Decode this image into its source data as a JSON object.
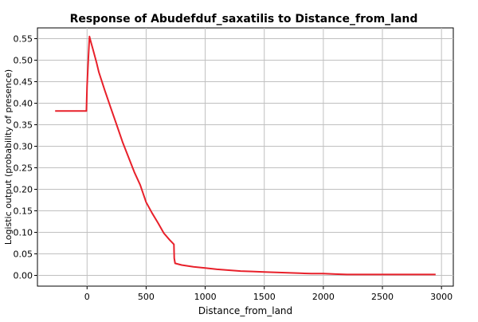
{
  "chart_data": {
    "type": "line",
    "title": "Response of Abudefduf_saxatilis to Distance_from_land",
    "xlabel": "Distance_from_land",
    "ylabel": "Logistic output (probability of presence)",
    "xlim": [
      -420,
      3100
    ],
    "ylim": [
      -0.025,
      0.575
    ],
    "x_ticks": [
      0,
      500,
      1000,
      1500,
      2000,
      2500,
      3000
    ],
    "y_ticks": [
      0.0,
      0.05,
      0.1,
      0.15,
      0.2,
      0.25,
      0.3,
      0.35,
      0.4,
      0.45,
      0.5,
      0.55
    ],
    "grid": true,
    "legend": "none",
    "series": [
      {
        "color": "#e8202a",
        "points": [
          [
            -270,
            0.382
          ],
          [
            -5,
            0.382
          ],
          [
            -5,
            0.385
          ],
          [
            0,
            0.44
          ],
          [
            10,
            0.5
          ],
          [
            20,
            0.555
          ],
          [
            30,
            0.545
          ],
          [
            50,
            0.525
          ],
          [
            80,
            0.495
          ],
          [
            100,
            0.472
          ],
          [
            150,
            0.43
          ],
          [
            200,
            0.39
          ],
          [
            250,
            0.35
          ],
          [
            300,
            0.31
          ],
          [
            350,
            0.275
          ],
          [
            400,
            0.24
          ],
          [
            450,
            0.21
          ],
          [
            500,
            0.17
          ],
          [
            550,
            0.145
          ],
          [
            600,
            0.122
          ],
          [
            650,
            0.098
          ],
          [
            700,
            0.082
          ],
          [
            735,
            0.072
          ],
          [
            738,
            0.04
          ],
          [
            745,
            0.028
          ],
          [
            800,
            0.024
          ],
          [
            850,
            0.022
          ],
          [
            900,
            0.02
          ],
          [
            1000,
            0.017
          ],
          [
            1100,
            0.014
          ],
          [
            1200,
            0.012
          ],
          [
            1300,
            0.01
          ],
          [
            1400,
            0.009
          ],
          [
            1500,
            0.008
          ],
          [
            1600,
            0.007
          ],
          [
            1700,
            0.006
          ],
          [
            1800,
            0.005
          ],
          [
            1900,
            0.004
          ],
          [
            2000,
            0.004
          ],
          [
            2100,
            0.003
          ],
          [
            2200,
            0.002
          ],
          [
            2500,
            0.002
          ],
          [
            2950,
            0.002
          ]
        ]
      }
    ]
  }
}
